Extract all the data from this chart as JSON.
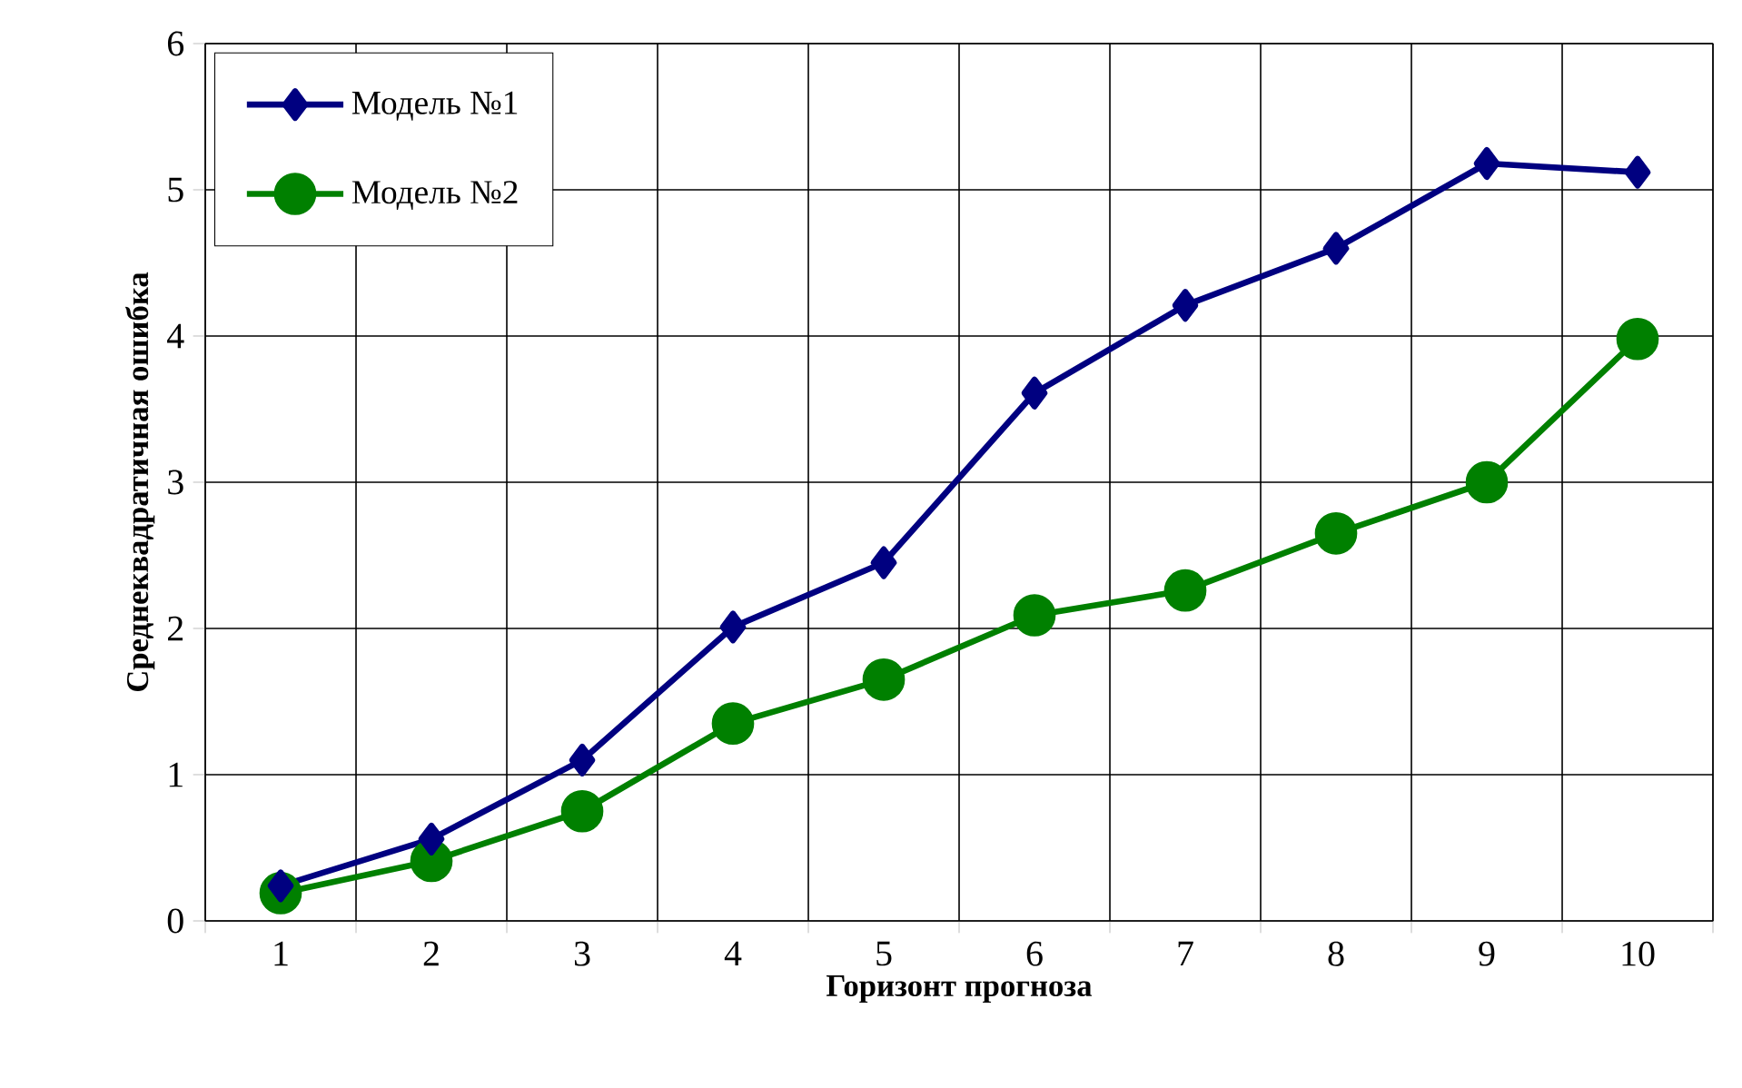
{
  "chart_data": {
    "type": "line",
    "xlabel": "Горизонт прогноза",
    "ylabel": "Среднеквадратичная ошибка",
    "categories": [
      "1",
      "2",
      "3",
      "4",
      "5",
      "6",
      "7",
      "8",
      "9",
      "10"
    ],
    "series": [
      {
        "name": "Модель №1",
        "color": "#000080",
        "marker": "diamond",
        "values": [
          0.24,
          0.56,
          1.1,
          2.01,
          2.45,
          3.61,
          4.21,
          4.6,
          5.18,
          5.12
        ]
      },
      {
        "name": "Модель №2",
        "color": "#008000",
        "marker": "circle",
        "values": [
          0.19,
          0.41,
          0.75,
          1.35,
          1.65,
          2.09,
          2.26,
          2.65,
          3.0,
          3.98
        ]
      }
    ],
    "ylim": [
      0,
      6
    ],
    "yticks": [
      0,
      1,
      2,
      3,
      4,
      5,
      6
    ],
    "grid": true,
    "legend": "top left",
    "line_style": "solid"
  }
}
